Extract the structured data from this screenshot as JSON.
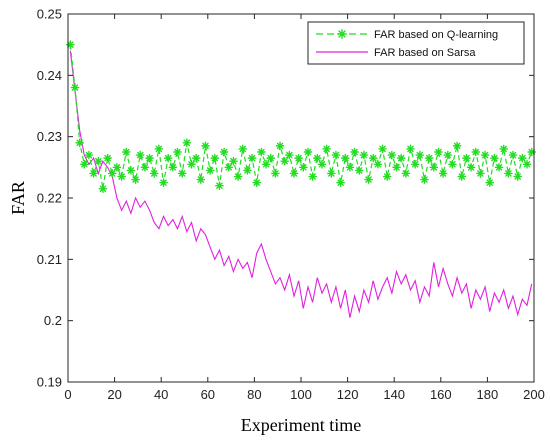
{
  "chart_data": {
    "type": "line",
    "title": "",
    "xlabel": "Experiment time",
    "ylabel": "FAR",
    "xlim": [
      0,
      200
    ],
    "ylim": [
      0.19,
      0.25
    ],
    "xticks": [
      0,
      20,
      40,
      60,
      80,
      100,
      120,
      140,
      160,
      180,
      200
    ],
    "yticks": [
      0.19,
      0.2,
      0.21,
      0.22,
      0.23,
      0.24,
      0.25
    ],
    "ytick_labels": [
      "0.19",
      "0.2",
      "0.21",
      "0.22",
      "0.23",
      "0.24",
      "0.25"
    ],
    "grid": false,
    "legend_position": "top-right",
    "x": [
      1,
      3,
      5,
      7,
      9,
      11,
      13,
      15,
      17,
      19,
      21,
      23,
      25,
      27,
      29,
      31,
      33,
      35,
      37,
      39,
      41,
      43,
      45,
      47,
      49,
      51,
      53,
      55,
      57,
      59,
      61,
      63,
      65,
      67,
      69,
      71,
      73,
      75,
      77,
      79,
      81,
      83,
      85,
      87,
      89,
      91,
      93,
      95,
      97,
      99,
      101,
      103,
      105,
      107,
      109,
      111,
      113,
      115,
      117,
      119,
      121,
      123,
      125,
      127,
      129,
      131,
      133,
      135,
      137,
      139,
      141,
      143,
      145,
      147,
      149,
      151,
      153,
      155,
      157,
      159,
      161,
      163,
      165,
      167,
      169,
      171,
      173,
      175,
      177,
      179,
      181,
      183,
      185,
      187,
      189,
      191,
      193,
      195,
      197,
      199
    ],
    "series": [
      {
        "name": "FAR based on Q-learning",
        "color": "#22dd22",
        "line_style": "dashed",
        "marker": "asterisk",
        "values": [
          0.245,
          0.238,
          0.229,
          0.2255,
          0.227,
          0.224,
          0.226,
          0.2215,
          0.2265,
          0.224,
          0.225,
          0.2235,
          0.2275,
          0.2245,
          0.223,
          0.227,
          0.225,
          0.2265,
          0.224,
          0.228,
          0.2225,
          0.2265,
          0.225,
          0.2275,
          0.224,
          0.229,
          0.2255,
          0.2265,
          0.223,
          0.2285,
          0.2245,
          0.2265,
          0.222,
          0.2275,
          0.225,
          0.226,
          0.2235,
          0.228,
          0.2245,
          0.2265,
          0.2225,
          0.2275,
          0.2255,
          0.2265,
          0.224,
          0.2285,
          0.226,
          0.227,
          0.224,
          0.2265,
          0.225,
          0.2275,
          0.2235,
          0.2265,
          0.2255,
          0.228,
          0.224,
          0.227,
          0.2225,
          0.2265,
          0.225,
          0.2275,
          0.2245,
          0.227,
          0.223,
          0.2265,
          0.2255,
          0.228,
          0.2235,
          0.227,
          0.225,
          0.2265,
          0.224,
          0.228,
          0.2255,
          0.227,
          0.223,
          0.2265,
          0.225,
          0.2275,
          0.224,
          0.227,
          0.2255,
          0.2285,
          0.2235,
          0.2265,
          0.225,
          0.2275,
          0.224,
          0.227,
          0.2225,
          0.2265,
          0.225,
          0.228,
          0.224,
          0.227,
          0.2235,
          0.2265,
          0.2255,
          0.2275
        ]
      },
      {
        "name": "FAR based on Sarsa",
        "color": "#e020e0",
        "line_style": "solid",
        "marker": "none",
        "values": [
          0.244,
          0.2375,
          0.231,
          0.227,
          0.2255,
          0.2265,
          0.224,
          0.226,
          0.225,
          0.2235,
          0.22,
          0.218,
          0.2195,
          0.2175,
          0.22,
          0.2185,
          0.2195,
          0.218,
          0.216,
          0.215,
          0.217,
          0.2155,
          0.2165,
          0.215,
          0.217,
          0.2145,
          0.216,
          0.213,
          0.215,
          0.214,
          0.212,
          0.21,
          0.2115,
          0.209,
          0.2105,
          0.208,
          0.21,
          0.2085,
          0.2095,
          0.207,
          0.211,
          0.2125,
          0.21,
          0.208,
          0.206,
          0.207,
          0.205,
          0.2075,
          0.204,
          0.2065,
          0.202,
          0.2055,
          0.203,
          0.207,
          0.2045,
          0.206,
          0.203,
          0.2055,
          0.202,
          0.205,
          0.2005,
          0.204,
          0.2015,
          0.205,
          0.203,
          0.2065,
          0.2035,
          0.2055,
          0.207,
          0.2045,
          0.208,
          0.206,
          0.2075,
          0.205,
          0.2065,
          0.203,
          0.2055,
          0.204,
          0.2095,
          0.2055,
          0.2085,
          0.206,
          0.204,
          0.207,
          0.2045,
          0.206,
          0.202,
          0.205,
          0.2035,
          0.2055,
          0.2015,
          0.2045,
          0.203,
          0.205,
          0.202,
          0.204,
          0.201,
          0.2035,
          0.2025,
          0.206
        ]
      }
    ]
  }
}
